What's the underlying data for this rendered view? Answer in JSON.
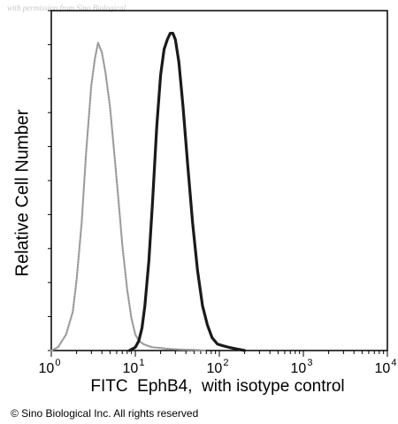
{
  "watermark": "with permission from Sino Biological",
  "copyright": "© Sino Biological Inc. All rights reserved",
  "chart_data": {
    "type": "line",
    "title": "",
    "xlabel": "FITC  EphB4,  with isotype control",
    "ylabel": "Relative Cell Number",
    "x_scale": "log",
    "xlim": [
      1,
      10000
    ],
    "ylim": [
      0,
      100
    ],
    "x_tick_labels": [
      {
        "base": "10",
        "exp": "0"
      },
      {
        "base": "10",
        "exp": "1"
      },
      {
        "base": "10",
        "exp": "2"
      },
      {
        "base": "10",
        "exp": "3"
      },
      {
        "base": "10",
        "exp": "4"
      }
    ],
    "x_ticks": [
      1,
      10,
      100,
      1000,
      10000
    ],
    "grid": false,
    "legend": "none",
    "series": [
      {
        "color": "#9a9a9a",
        "style": "dotted",
        "x": [
          1.0,
          1.2,
          1.5,
          1.8,
          2.0,
          2.3,
          2.6,
          3.0,
          3.3,
          3.6,
          4.0,
          4.4,
          5.0,
          5.6,
          6.3,
          7.0,
          8.0,
          9.0,
          10.0,
          11.0,
          12.5,
          14.0,
          16.0,
          20.0,
          25.0,
          35.0,
          50.0,
          70.0
        ],
        "y": [
          0,
          1,
          5,
          12,
          22,
          40,
          62,
          83,
          91,
          96,
          93,
          87,
          76,
          62,
          47,
          33,
          19,
          10,
          5,
          3,
          2,
          1.5,
          1,
          0.8,
          0.5,
          0.3,
          0.2,
          0
        ]
      },
      {
        "color": "#1a1a1a",
        "style": "solid",
        "x": [
          8.5,
          10.0,
          11.0,
          12.0,
          13.0,
          14.5,
          16.0,
          18.0,
          20.0,
          22.0,
          24.0,
          26.0,
          28.0,
          30.0,
          33.0,
          37.0,
          42.0,
          48.0,
          55.0,
          63.0,
          72.0,
          82.0,
          95.0,
          110.0,
          130.0,
          160.0,
          200.0
        ],
        "y": [
          0,
          1,
          3,
          7,
          14,
          28,
          46,
          70,
          86,
          94,
          97,
          99,
          99,
          97,
          90,
          76,
          58,
          40,
          25,
          14,
          8,
          4,
          2,
          1.5,
          1,
          0.5,
          0
        ]
      }
    ]
  }
}
